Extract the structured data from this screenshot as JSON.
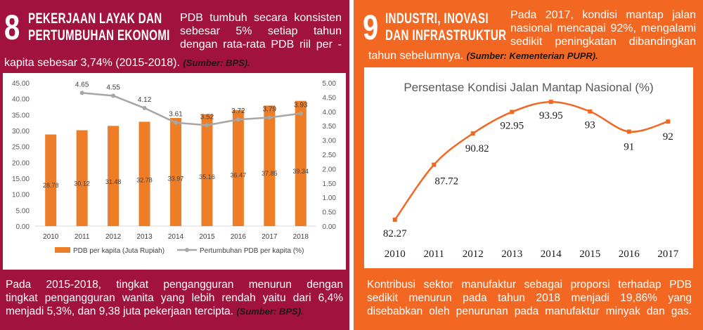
{
  "left": {
    "goal_number": "8",
    "title_line1": "PEKERJAAN LAYAK DAN",
    "title_line2": "PERTUMBUHAN EKONOMI",
    "intro_lines": [
      "PDB tumbuh secara konsisten",
      "sebesar 5% setiap tahun",
      "dengan rata-rata PDB riil per -"
    ],
    "intro_last": "kapita sebesar 3,74% (2015-2018).",
    "intro_source": "(Sumber: BPS).",
    "bottom_lines": [
      "Pada 2015-2018, tingkat pengangguran menurun dengan",
      "tingkat pengangguran wanita yang lebih rendah yaitu dari 6,4%"
    ],
    "bottom_last": "menjadi 5,3%, dan 9,38 juta pekerjaan tercipta.",
    "bottom_source": "(Sumber: BPS).",
    "colors": {
      "bar": "#ee7d27",
      "line": "#a6a6a6",
      "panel": "#a2123f"
    }
  },
  "right": {
    "goal_number": "9",
    "title_line1": "INDUSTRI, INOVASI",
    "title_line2": "DAN INFRASTRUKTUR",
    "intro_lines": [
      "Pada 2017, kondisi mantap jalan",
      "nasional mencapai 92%, mengalami",
      "sedikit peningkatan dibandingkan"
    ],
    "intro_last": "tahun sebelumnya.",
    "intro_source": "(Sumber: Kementerian PUPR).",
    "bottom_lines": [
      "Kontribusi sektor manufaktur sebagai proporsi terhadap PDB",
      "sedikit menurun pada tahun 2018 menjadi 19,86% yang"
    ],
    "bottom_last": "disebabkan oleh  penurunan pada manufaktur minyak dan gas.",
    "colors": {
      "line": "#f26722",
      "panel": "#f26722"
    }
  },
  "chart_data": [
    {
      "type": "bar",
      "categories": [
        "2010",
        "2011",
        "2012",
        "2013",
        "2014",
        "2015",
        "2016",
        "2017",
        "2018"
      ],
      "series": [
        {
          "name": "PDB per kapita (Juta Rupiah)",
          "type": "bar",
          "axis": "left",
          "values": [
            28.78,
            30.12,
            31.48,
            32.78,
            33.97,
            35.16,
            36.47,
            37.85,
            39.34
          ],
          "labels": [
            "28.78",
            "30.12",
            "31.48",
            "32.78",
            "33.97",
            "35.16",
            "36.47",
            "37.85",
            "39.34"
          ]
        },
        {
          "name": "Pertumbuhan PDB per kapita (%)",
          "type": "line",
          "axis": "right",
          "values": [
            null,
            4.65,
            4.55,
            4.12,
            3.61,
            3.52,
            3.72,
            3.79,
            3.93
          ],
          "labels": [
            "",
            "4.65",
            "4.55",
            "4.12",
            "3.61",
            "3.52",
            "3.72",
            "3.79",
            "3.93"
          ]
        }
      ],
      "y_left": {
        "range": [
          0,
          45
        ],
        "ticks": [
          "0.00",
          "5.00",
          "10.00",
          "15.00",
          "20.00",
          "25.00",
          "30.00",
          "35.00",
          "40.00",
          "45.00"
        ]
      },
      "y_right": {
        "range": [
          0,
          5
        ],
        "ticks": [
          "0.00",
          "0.50",
          "1.00",
          "1.50",
          "2.00",
          "2.50",
          "3.00",
          "3.50",
          "4.00",
          "4.50",
          "5.00"
        ]
      },
      "grid": false,
      "legend": "bottom"
    },
    {
      "type": "line",
      "title": "Persentase Kondisi Jalan Mantap Nasional (%)",
      "categories": [
        "2010",
        "2011",
        "2012",
        "2013",
        "2014",
        "2015",
        "2016",
        "2017"
      ],
      "values": [
        82.27,
        87.72,
        90.82,
        92.95,
        93.95,
        93,
        91,
        92
      ],
      "labels": [
        "82.27",
        "87.72",
        "90.82",
        "92.95",
        "93.95",
        "93",
        "91",
        "92"
      ],
      "y_range": [
        81.5,
        95
      ],
      "grid": false,
      "legend": "none"
    }
  ]
}
